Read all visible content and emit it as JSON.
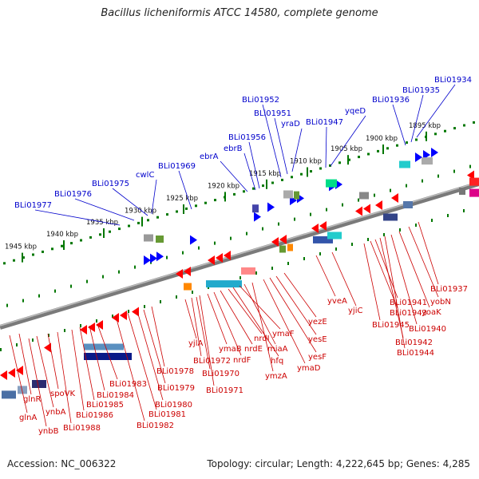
{
  "title": "Bacillus licheniformis ATCC 14580, complete genome",
  "footer": {
    "accession": "Accession: NC_006322",
    "topology": "Topology: circular; Length: 4,222,645 bp; Genes: 4,285"
  },
  "colors": {
    "top_label": "#0000cc",
    "bottom_label": "#cc0000",
    "forward_arrow": "#0000ff",
    "reverse_arrow": "#ff0000",
    "tick": "#007700",
    "backbone": "#808080"
  },
  "scale_labels": [
    "1945 kbp",
    "1940 kbp",
    "1935 kbp",
    "1930 kbp",
    "1925 kbp",
    "1920 kbp",
    "1915 kbp",
    "1910 kbp",
    "1905 kbp",
    "1900 kbp",
    "1895 kbp"
  ],
  "top_genes": [
    "BLi01977",
    "BLi01976",
    "BLi01975",
    "cwlC",
    "BLi01969",
    "ebrA",
    "ebrB",
    "BLi01956",
    "BLi01952",
    "BLi01951",
    "yraD",
    "BLi01947",
    "yqeD",
    "BLi01936",
    "BLi01935",
    "BLi01934"
  ],
  "bottom_genes": [
    "glnA",
    "glnR",
    "ynbB",
    "ynbA",
    "spoVK",
    "BLi01988",
    "BLi01986",
    "BLi01985",
    "BLi01984",
    "BLi01983",
    "BLi01982",
    "BLi01981",
    "BLi01980",
    "BLi01979",
    "BLi01978",
    "yjlA",
    "BLi01972",
    "BLi01970",
    "BLi01971",
    "ymaB",
    "nrdF",
    "nrdE",
    "nrdI",
    "hfq",
    "ymaF",
    "miaA",
    "ymzA",
    "ymaD",
    "yesF",
    "yesE",
    "yezE",
    "yveA",
    "yjiC",
    "BLi01945",
    "BLi01943",
    "BLi01941",
    "BLi01942",
    "BLi01944",
    "BLi01940",
    "yoaK",
    "yobN",
    "BLi01937"
  ]
}
